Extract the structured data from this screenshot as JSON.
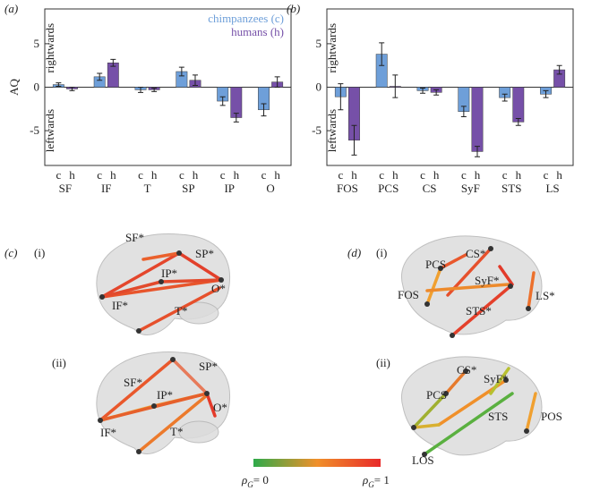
{
  "chart_data": [
    {
      "type": "bar",
      "panel_label": "(a)",
      "y_label": "AQ",
      "annotations": [
        "rightwards",
        "leftwards"
      ],
      "categories": [
        "SF",
        "IF",
        "T",
        "SP",
        "IP",
        "O"
      ],
      "sub_labels": [
        "c",
        "h"
      ],
      "series": [
        {
          "name": "chimpanzees (c)",
          "color": "#6e9fd9",
          "values": [
            0.3,
            1.2,
            -0.3,
            1.8,
            -1.6,
            -2.6
          ],
          "errors": [
            0.2,
            0.4,
            0.3,
            0.5,
            0.5,
            0.7
          ]
        },
        {
          "name": "humans (h)",
          "color": "#7650a8",
          "values": [
            -0.2,
            2.8,
            -0.3,
            0.8,
            -3.5,
            0.6
          ],
          "errors": [
            0.2,
            0.4,
            0.2,
            0.6,
            0.5,
            0.6
          ]
        }
      ],
      "ylim": [
        -9,
        9
      ],
      "yticks": [
        -5,
        0,
        5
      ],
      "legend": "upper right"
    },
    {
      "type": "bar",
      "panel_label": "(b)",
      "annotations": [
        "rightwards",
        "leftwards"
      ],
      "categories": [
        "FOS",
        "PCS",
        "CS",
        "SyF",
        "STS",
        "LS"
      ],
      "sub_labels": [
        "c",
        "h"
      ],
      "series": [
        {
          "color": "#6e9fd9",
          "values": [
            -1.1,
            3.8,
            -0.4,
            -2.8,
            -1.2,
            -0.8
          ],
          "errors": [
            1.5,
            1.3,
            0.3,
            0.6,
            0.4,
            0.4
          ]
        },
        {
          "color": "#7650a8",
          "values": [
            -6.1,
            0.1,
            -0.6,
            -7.4,
            -4.0,
            2.0
          ],
          "errors": [
            1.7,
            1.3,
            0.3,
            0.6,
            0.4,
            0.5
          ]
        }
      ],
      "ylim": [
        -9,
        9
      ],
      "yticks": [
        -5,
        0,
        5
      ]
    }
  ],
  "brains": {
    "c": {
      "label": "(c)",
      "i": {
        "label": "(i)",
        "nodes": [
          "SF*",
          "SP*",
          "IP*",
          "O*",
          "IF*",
          "T*"
        ]
      },
      "ii": {
        "label": "(ii)",
        "nodes": [
          "SF*",
          "SP*",
          "IP*",
          "O*",
          "IF*",
          "T*"
        ]
      }
    },
    "d": {
      "label": "(d)",
      "i": {
        "label": "(i)",
        "nodes": [
          "CS*",
          "PCS",
          "SyF*",
          "FOS",
          "LS*",
          "STS*"
        ]
      },
      "ii": {
        "label": "(ii)",
        "nodes": [
          "CS*",
          "PCS",
          "SyF*",
          "STS",
          "POS",
          "LOS"
        ]
      }
    }
  },
  "colorbar": {
    "symbol": "ρ",
    "subscript": "G",
    "min_label": "= 0",
    "max_label": "= 1"
  }
}
